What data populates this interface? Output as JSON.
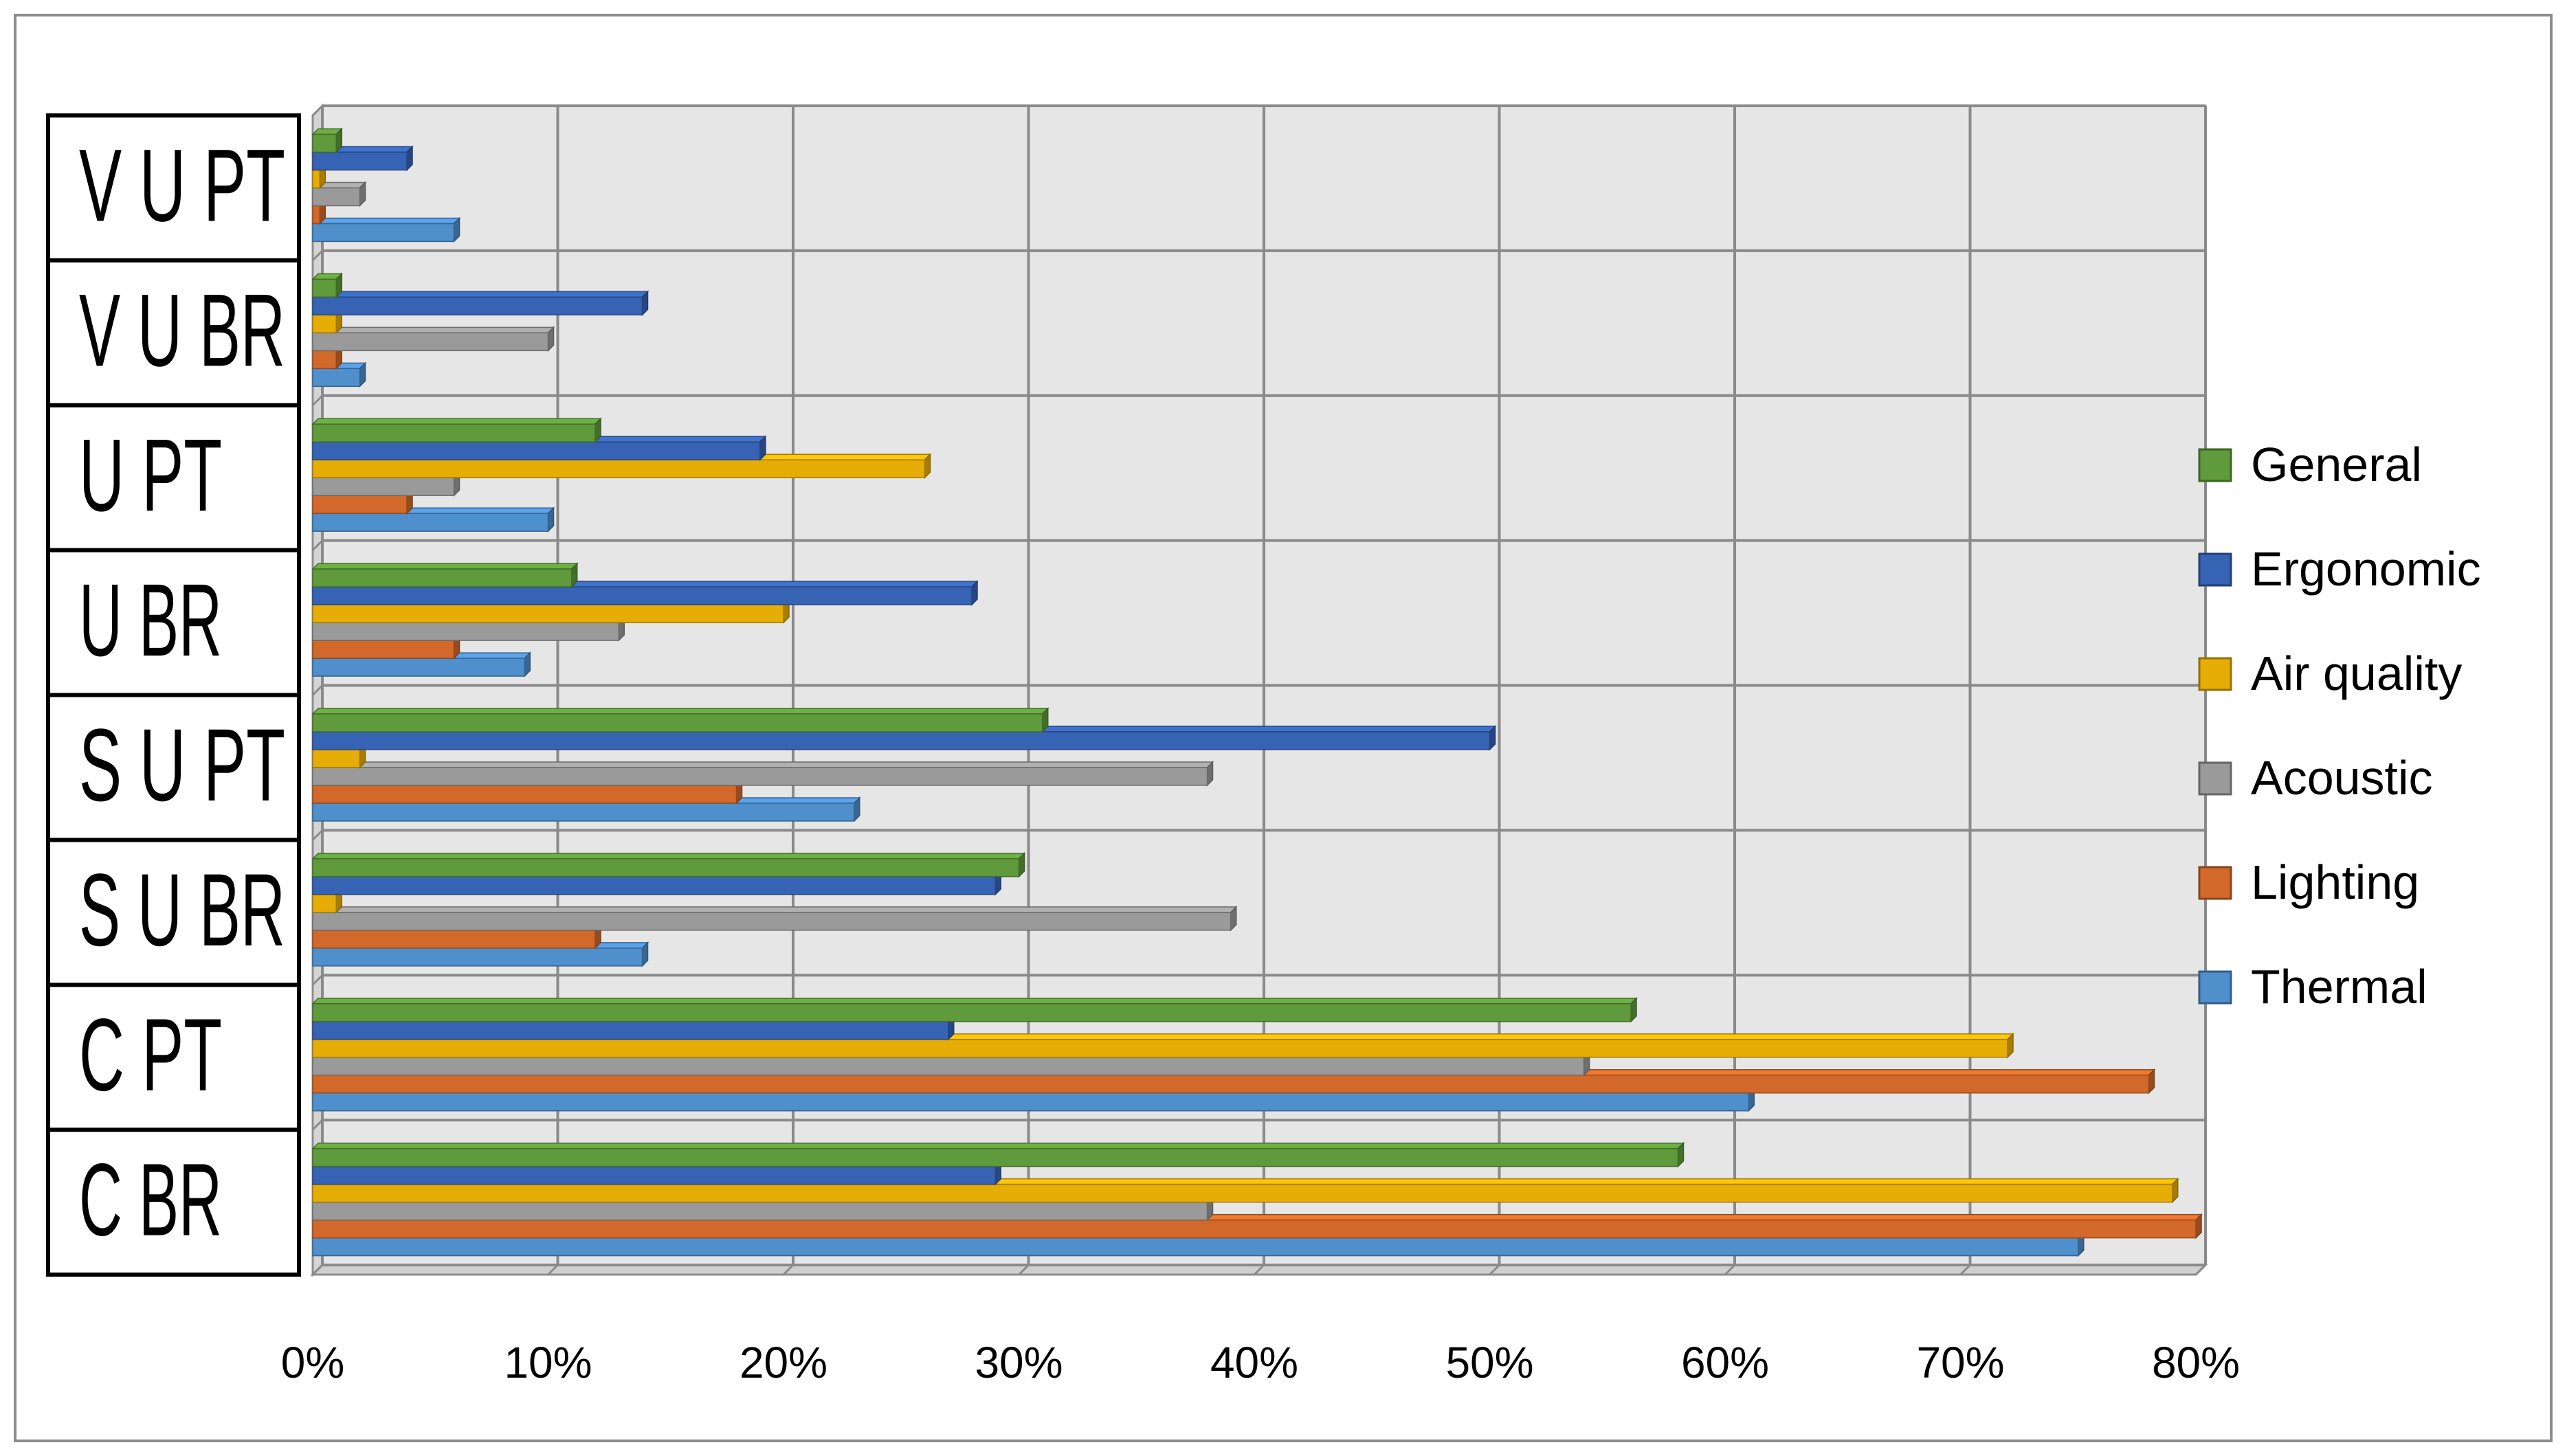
{
  "chart_data": {
    "type": "bar",
    "orientation": "horizontal",
    "style": "3d-clustered",
    "categories": [
      "C BR",
      "C PT",
      "S U BR",
      "S U PT",
      "U BR",
      "U PT",
      "V U BR",
      "V U PT"
    ],
    "series": [
      {
        "name": "Thermal",
        "color": "#4f8fcc",
        "values": [
          75,
          61,
          14,
          23,
          9,
          10,
          2,
          6
        ]
      },
      {
        "name": "Lighting",
        "color": "#d2692a",
        "values": [
          80,
          78,
          12,
          18,
          6,
          4,
          1,
          0.3
        ]
      },
      {
        "name": "Acoustic",
        "color": "#9a9a9a",
        "values": [
          38,
          54,
          39,
          38,
          13,
          6,
          10,
          2
        ]
      },
      {
        "name": "Air quality",
        "color": "#e6ad07",
        "values": [
          79,
          72,
          1,
          2,
          20,
          26,
          1,
          0.3
        ]
      },
      {
        "name": "Ergonomic",
        "color": "#3763b4",
        "values": [
          29,
          27,
          29,
          50,
          28,
          19,
          14,
          4
        ]
      },
      {
        "name": "General",
        "color": "#5f9a3c",
        "values": [
          58,
          56,
          30,
          31,
          11,
          12,
          1,
          1
        ]
      }
    ],
    "legend_order": [
      "General",
      "Ergonomic",
      "Air quality",
      "Acoustic",
      "Lighting",
      "Thermal"
    ],
    "x_ticks": [
      "0%",
      "10%",
      "20%",
      "30%",
      "40%",
      "50%",
      "60%",
      "70%",
      "80%"
    ],
    "xlim": [
      0,
      80
    ],
    "grid": true,
    "legend_position": "right",
    "title": "",
    "xlabel": "",
    "ylabel": ""
  }
}
